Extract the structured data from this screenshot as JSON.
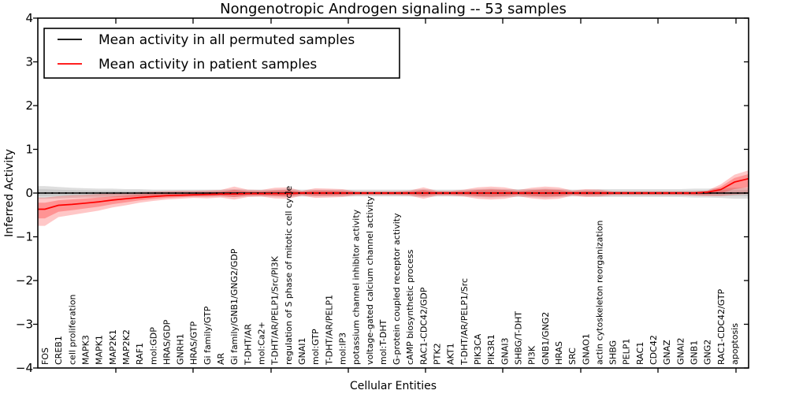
{
  "title": "Nongenotropic Androgen signaling -- 53 samples",
  "axes": {
    "ylabel": "Inferred Activity",
    "xlabel": "Cellular Entities"
  },
  "legend": {
    "items": [
      {
        "label": "Mean activity in all permuted samples",
        "color": "#000000"
      },
      {
        "label": "Mean activity in patient samples",
        "color": "#ff0000"
      }
    ]
  },
  "chart_data": {
    "type": "line",
    "title": "Nongenotropic Androgen signaling -- 53 samples",
    "xlabel": "Cellular Entities",
    "ylabel": "Inferred Activity",
    "ylim": [
      -4,
      4
    ],
    "yticks": [
      4,
      3,
      2,
      1,
      0,
      -1,
      -2,
      -3,
      -4
    ],
    "legend_position": "upper left",
    "grid": false,
    "categories": [
      "FOS",
      "CREB1",
      "cell proliferation",
      "MAPK3",
      "MAPK1",
      "MAP2K1",
      "MAP2K2",
      "RAF1",
      "mol:GDP",
      "HRAS/GDP",
      "GNRH1",
      "HRAS/GTP",
      "Gi family/GTP",
      "AR",
      "Gi family/GNB1/GNG2/GDP",
      "T-DHT/AR",
      "mol:Ca2+",
      "T-DHT/AR/PELP1/Src/PI3K",
      "regulation of S phase of mitotic cell cycle",
      "GNAI1",
      "mol:GTP",
      "T-DHT/AR/PELP1",
      "mol:IP3",
      "potassium channel inhibitor activity",
      "voltage-gated calcium channel activity",
      "mol:T-DHT",
      "G-protein coupled receptor activity",
      "cAMP biosynthetic process",
      "RAC1-CDC42/GDP",
      "PTK2",
      "AKT1",
      "T-DHT/AR/PELP1/Src",
      "PIK3CA",
      "PIK3R1",
      "GNAI3",
      "SHBG/T-DHT",
      "PI3K",
      "GNB1/GNG2",
      "HRAS",
      "SRC",
      "GNAO1",
      "actin cytoskeleton reorganization",
      "SHBG",
      "PELP1",
      "RAC1",
      "CDC42",
      "GNAZ",
      "GNAI2",
      "GNB1",
      "GNG2",
      "RAC1-CDC42/GTP",
      "apoptosis"
    ],
    "series": [
      {
        "name": "Mean activity in all permuted samples",
        "color": "#000000",
        "style": "solid-with-dotted-overlay",
        "values": [
          0,
          0,
          0,
          0,
          0,
          0,
          0,
          0,
          0,
          0,
          0,
          0,
          0,
          0,
          0,
          0,
          0,
          0,
          0,
          0,
          0,
          0,
          0,
          0,
          0,
          0,
          0,
          0,
          0,
          0,
          0,
          0,
          0,
          0,
          0,
          0,
          0,
          0,
          0,
          0,
          0,
          0,
          0,
          0,
          0,
          0,
          0,
          0,
          0,
          0,
          0,
          0
        ],
        "band_upper": [
          0.16,
          0.14,
          0.12,
          0.11,
          0.1,
          0.1,
          0.09,
          0.09,
          0.08,
          0.08,
          0.08,
          0.08,
          0.08,
          0.08,
          0.09,
          0.08,
          0.08,
          0.08,
          0.09,
          0.08,
          0.08,
          0.08,
          0.08,
          0.08,
          0.08,
          0.08,
          0.08,
          0.08,
          0.09,
          0.08,
          0.08,
          0.08,
          0.09,
          0.1,
          0.09,
          0.09,
          0.09,
          0.1,
          0.09,
          0.08,
          0.08,
          0.09,
          0.09,
          0.09,
          0.09,
          0.09,
          0.09,
          0.09,
          0.1,
          0.1,
          0.11,
          0.12
        ],
        "band_lower": [
          -0.13,
          -0.12,
          -0.11,
          -0.1,
          -0.1,
          -0.09,
          -0.09,
          -0.08,
          -0.08,
          -0.08,
          -0.08,
          -0.08,
          -0.08,
          -0.08,
          -0.09,
          -0.08,
          -0.08,
          -0.08,
          -0.09,
          -0.08,
          -0.08,
          -0.08,
          -0.08,
          -0.08,
          -0.08,
          -0.08,
          -0.08,
          -0.08,
          -0.09,
          -0.08,
          -0.08,
          -0.08,
          -0.09,
          -0.1,
          -0.09,
          -0.09,
          -0.09,
          -0.1,
          -0.09,
          -0.08,
          -0.08,
          -0.09,
          -0.09,
          -0.09,
          -0.09,
          -0.09,
          -0.09,
          -0.09,
          -0.1,
          -0.1,
          -0.11,
          -0.13
        ],
        "right_edge": {
          "value": 0.0,
          "band_upper": 0.12,
          "band_lower": -0.13
        }
      },
      {
        "name": "Mean activity in patient samples",
        "color": "#ff0000",
        "style": "solid",
        "values": [
          -0.37,
          -0.28,
          -0.26,
          -0.23,
          -0.2,
          -0.16,
          -0.13,
          -0.1,
          -0.08,
          -0.06,
          -0.05,
          -0.04,
          -0.03,
          -0.02,
          -0.02,
          -0.01,
          -0.01,
          -0.01,
          -0.01,
          0,
          0,
          0,
          0,
          0,
          0,
          0,
          0,
          0,
          0,
          0,
          0,
          0,
          0,
          0,
          0,
          0,
          0,
          0,
          0,
          0,
          0,
          0,
          0,
          0,
          0,
          0,
          0,
          0,
          0,
          0.02,
          0.08,
          0.25
        ],
        "band_upper": [
          -0.1,
          -0.07,
          -0.05,
          -0.04,
          -0.02,
          -0.01,
          0.0,
          0.02,
          0.03,
          0.04,
          0.05,
          0.05,
          0.06,
          0.07,
          0.15,
          0.08,
          0.07,
          0.12,
          0.13,
          0.05,
          0.11,
          0.1,
          0.09,
          0.04,
          0.04,
          0.04,
          0.04,
          0.06,
          0.13,
          0.05,
          0.05,
          0.08,
          0.13,
          0.15,
          0.13,
          0.07,
          0.12,
          0.15,
          0.13,
          0.06,
          0.09,
          0.08,
          0.04,
          0.04,
          0.04,
          0.04,
          0.04,
          0.04,
          0.04,
          0.06,
          0.2,
          0.42
        ],
        "band_lower": [
          -0.75,
          -0.55,
          -0.5,
          -0.45,
          -0.4,
          -0.33,
          -0.28,
          -0.22,
          -0.18,
          -0.15,
          -0.13,
          -0.11,
          -0.12,
          -0.1,
          -0.15,
          -0.09,
          -0.08,
          -0.12,
          -0.13,
          -0.06,
          -0.11,
          -0.1,
          -0.09,
          -0.05,
          -0.05,
          -0.05,
          -0.05,
          -0.06,
          -0.13,
          -0.06,
          -0.06,
          -0.08,
          -0.13,
          -0.15,
          -0.13,
          -0.07,
          -0.12,
          -0.15,
          -0.13,
          -0.06,
          -0.09,
          -0.08,
          -0.05,
          -0.05,
          -0.05,
          -0.05,
          -0.05,
          -0.05,
          -0.06,
          -0.07,
          -0.07,
          -0.04
        ],
        "right_edge": {
          "value": 0.33,
          "band_upper": 0.52,
          "band_lower": -0.02
        }
      }
    ]
  }
}
